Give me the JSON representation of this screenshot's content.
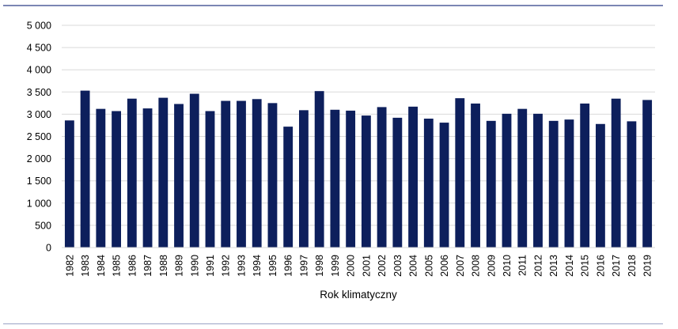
{
  "chart_data": {
    "type": "bar",
    "title": "",
    "xlabel": "Rok klimatyczny",
    "ylabel": "",
    "ylim": [
      0,
      5000
    ],
    "yticks": [
      0,
      500,
      1000,
      1500,
      2000,
      2500,
      3000,
      3500,
      4000,
      4500,
      5000
    ],
    "ytick_labels": [
      "0",
      "500",
      "1 000",
      "1 500",
      "2 000",
      "2 500",
      "3 000",
      "3 500",
      "4 000",
      "4 500",
      "5 000"
    ],
    "grid": true,
    "legend": "none",
    "bar_color": "#0d1f5c",
    "grid_color": "#d9d9d9",
    "categories": [
      "1982",
      "1983",
      "1984",
      "1985",
      "1986",
      "1987",
      "1988",
      "1989",
      "1990",
      "1991",
      "1992",
      "1993",
      "1994",
      "1995",
      "1996",
      "1997",
      "1998",
      "1999",
      "2000",
      "2001",
      "2002",
      "2003",
      "2004",
      "2005",
      "2006",
      "2007",
      "2008",
      "2009",
      "2010",
      "2011",
      "2012",
      "2013",
      "2014",
      "2015",
      "2016",
      "2017",
      "2018",
      "2019"
    ],
    "values": [
      2860,
      3530,
      3120,
      3070,
      3350,
      3130,
      3370,
      3230,
      3460,
      3070,
      3300,
      3300,
      3340,
      3250,
      2720,
      3090,
      3520,
      3100,
      3080,
      2970,
      3160,
      2920,
      3170,
      2900,
      2810,
      3360,
      3240,
      2850,
      3010,
      3120,
      3010,
      2850,
      2880,
      3240,
      2780,
      3350,
      2840,
      3320
    ]
  }
}
